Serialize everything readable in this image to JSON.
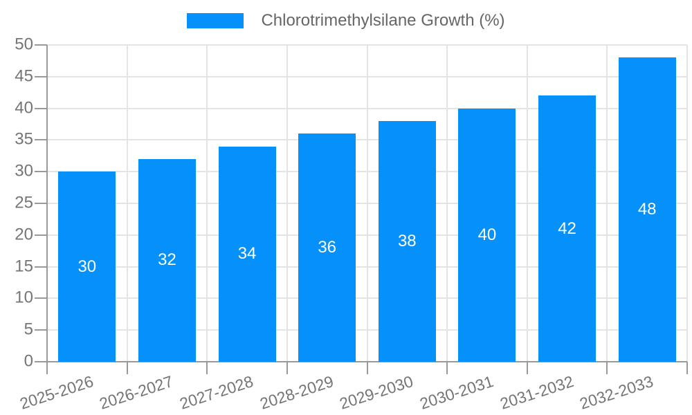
{
  "legend": {
    "label": "Chlorotrimethylsilane Growth (%)"
  },
  "chart_data": {
    "type": "bar",
    "title": "Chlorotrimethylsilane Growth (%)",
    "series_name": "Chlorotrimethylsilane Growth (%)",
    "categories": [
      "2025-2026",
      "2026-2027",
      "2027-2028",
      "2028-2029",
      "2029-2030",
      "2030-2031",
      "2031-2032",
      "2032-2033"
    ],
    "values": [
      30,
      32,
      34,
      36,
      38,
      40,
      42,
      48
    ],
    "value_labels": [
      "30",
      "32",
      "34",
      "36",
      "38",
      "40",
      "42",
      "48"
    ],
    "ytick_labels": [
      "0",
      "5",
      "10",
      "15",
      "20",
      "25",
      "30",
      "35",
      "40",
      "45",
      "50"
    ],
    "xlabel": "",
    "ylabel": "",
    "ylim": [
      0,
      50
    ],
    "ytick_step": 5,
    "grid": true,
    "legend_position": "top center",
    "colors": {
      "bar": "#0691fa",
      "value_label": "#ffffff",
      "axis": "#999999",
      "grid": "#e4e4e4",
      "tick_label": "#757575",
      "legend_text": "#666666",
      "background": "#ffffff"
    }
  }
}
